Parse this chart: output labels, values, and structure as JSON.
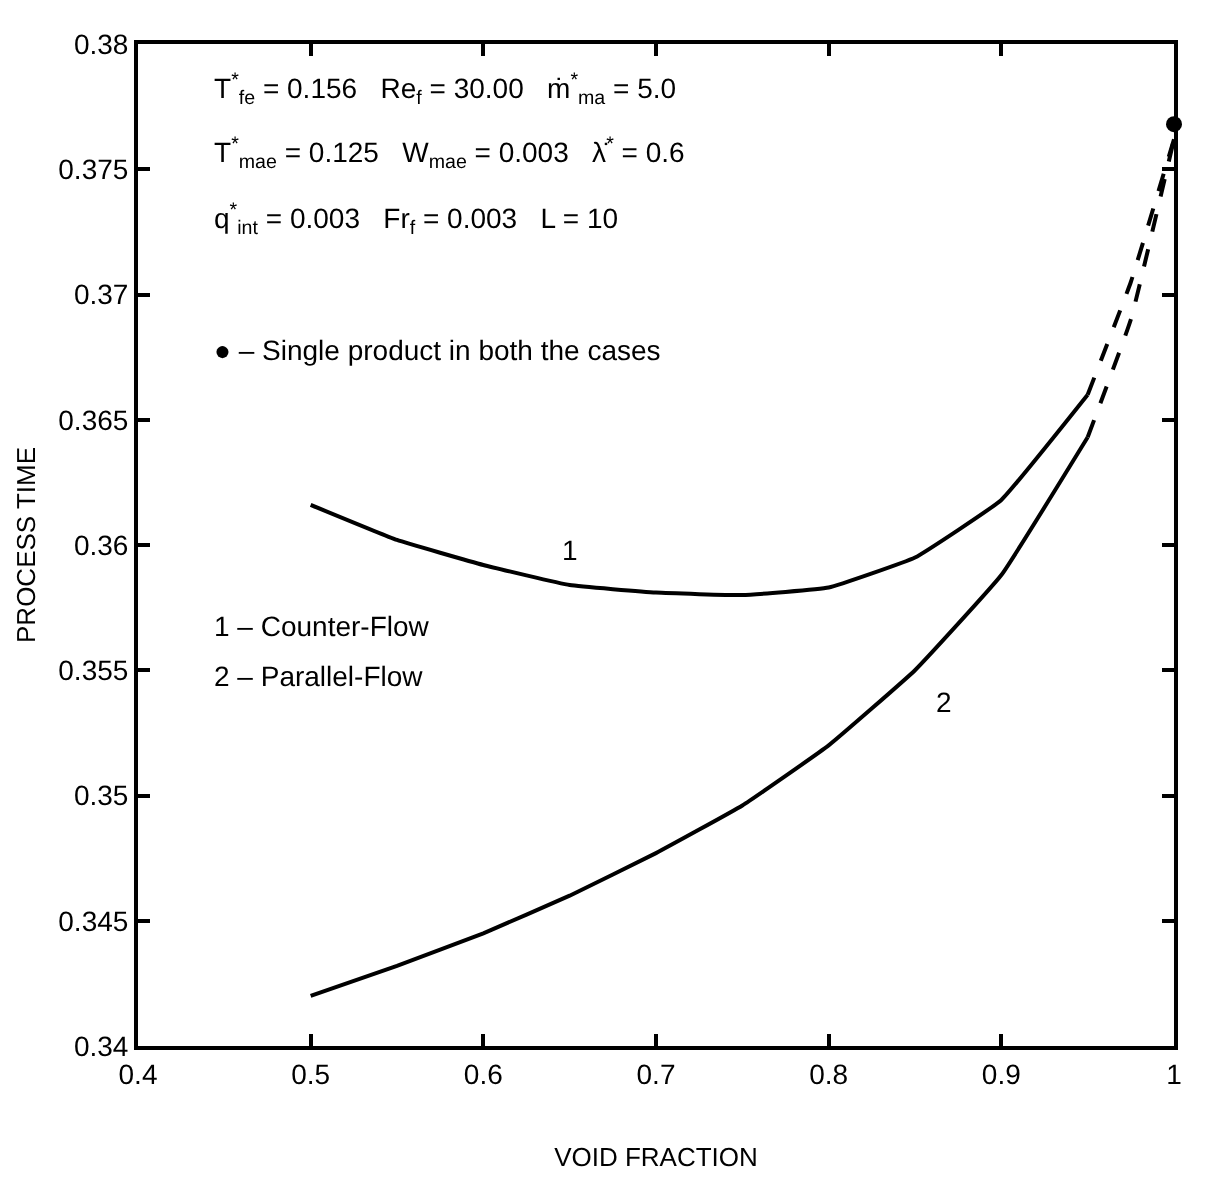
{
  "chart_data": {
    "type": "line",
    "xlabel": "VOID FRACTION",
    "ylabel": "PROCESS TIME",
    "xlim": [
      0.4,
      1
    ],
    "xticks": [
      0.4,
      0.5,
      0.6,
      0.7,
      0.8,
      0.9,
      1
    ],
    "ylim": [
      0.34,
      0.38
    ],
    "yticks": [
      0.34,
      0.345,
      0.35,
      0.355,
      0.36,
      0.365,
      0.37,
      0.375,
      0.38
    ],
    "marker": "none",
    "line_style": "solid",
    "series": [
      {
        "name": "1",
        "color": "#000000",
        "x": [
          0.5,
          0.55,
          0.6,
          0.65,
          0.7,
          0.75,
          0.8,
          0.85,
          0.9,
          0.95
        ],
        "values": [
          0.3616,
          0.3602,
          0.3592,
          0.3584,
          0.3581,
          0.358,
          0.3583,
          0.3595,
          0.3618,
          0.366
        ]
      },
      {
        "name": "2",
        "color": "#000000",
        "x": [
          0.5,
          0.55,
          0.6,
          0.65,
          0.7,
          0.75,
          0.8,
          0.85,
          0.9,
          0.95
        ],
        "values": [
          0.342,
          0.3432,
          0.3445,
          0.346,
          0.3477,
          0.3496,
          0.352,
          0.355,
          0.3588,
          0.3643
        ]
      },
      {
        "color": "#000000",
        "line_style": "dashed",
        "x": [
          0.95,
          0.975,
          1.0
        ],
        "values": [
          0.366,
          0.3705,
          0.3762
        ]
      },
      {
        "color": "#000000",
        "line_style": "dashed",
        "x": [
          0.95,
          0.975,
          1.0
        ],
        "values": [
          0.3643,
          0.369,
          0.3762
        ]
      },
      {
        "type": "scatter",
        "marker": "circle",
        "color": "#000000",
        "x": [
          1.0
        ],
        "values": [
          0.3768
        ]
      }
    ],
    "annotations": [
      "T$^{*}$$_{fe}$ = 0.156   Re$_{f}$ = 30.00   ṁ$^{*}$$_{ma}$ = 5.0",
      "T$^{*}$$_{mae}$ = 0.125   W$_{mae}$ = 0.003   λ̇$^{*}$ = 0.6",
      "q$^{*}$$_{int}$ = 0.003   Fr$_{f}$ = 0.003   L = 10",
      "● – Single product in both the cases",
      "1 – Counter-Flow",
      "2 – Parallel-Flow"
    ]
  }
}
